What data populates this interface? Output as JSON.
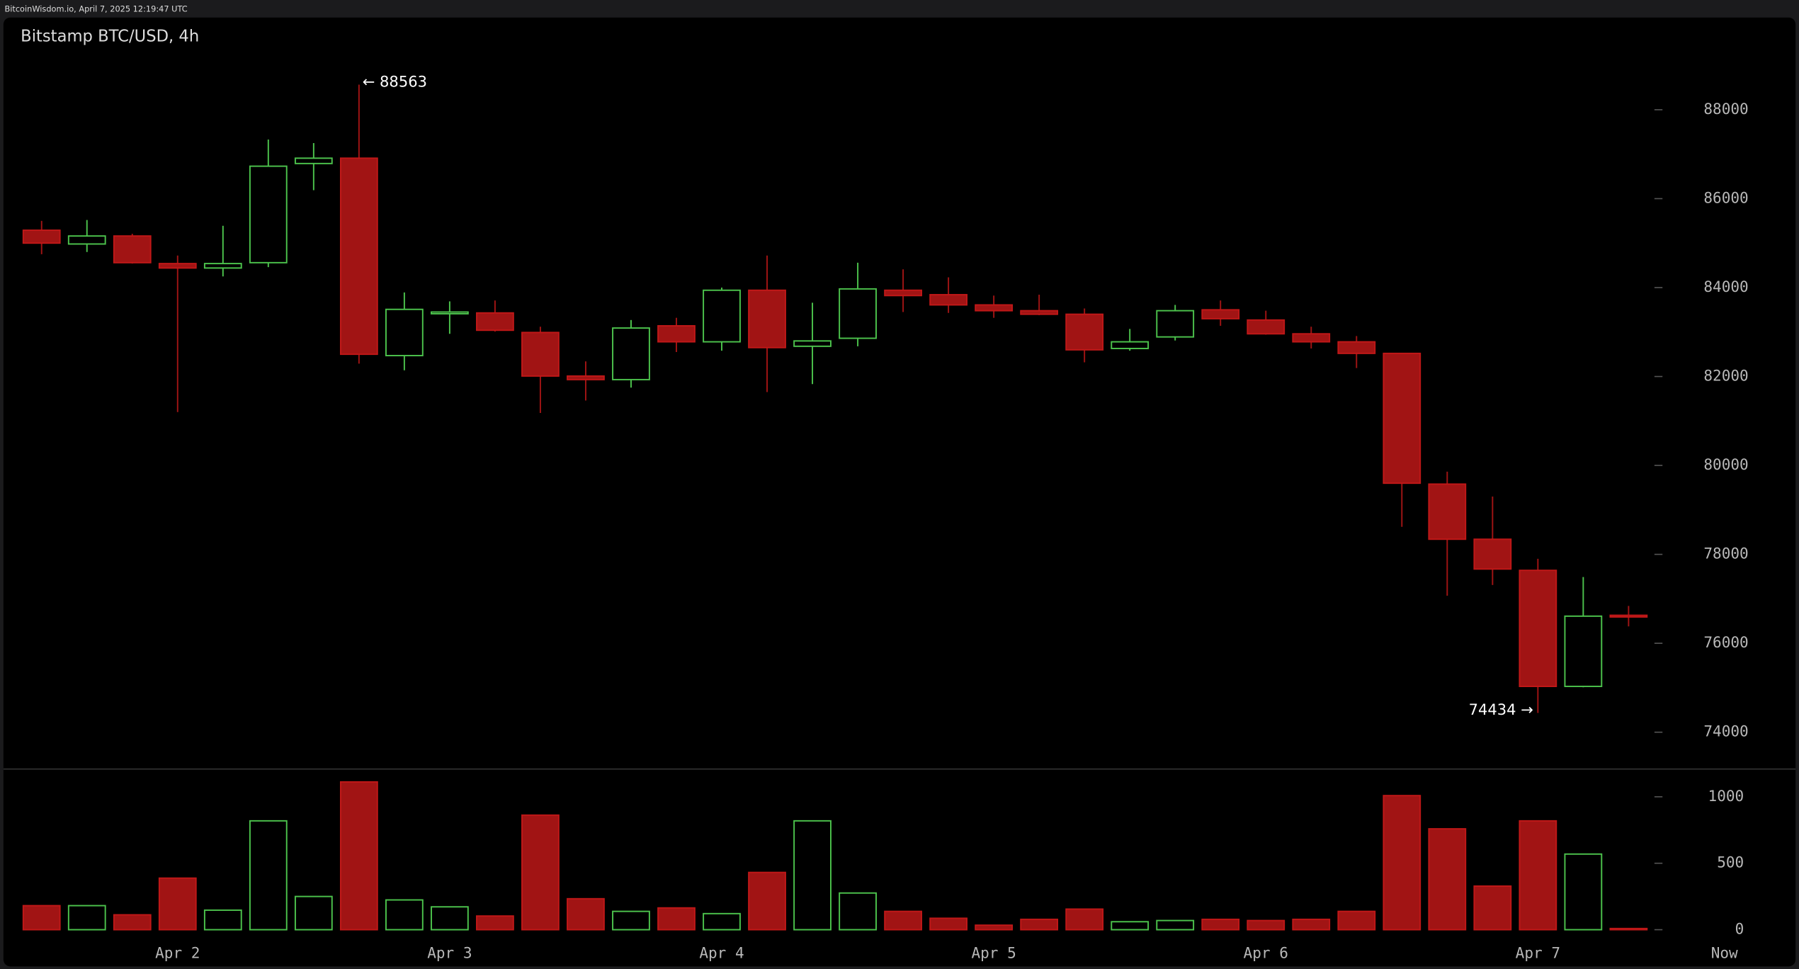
{
  "header_text": "BitcoinWisdom.io, April 7, 2025 12:19:47 UTC",
  "chart_data": {
    "type": "candlestick",
    "title": "Bitstamp BTC/USD, 4h",
    "categories": [
      null,
      null,
      null,
      "Apr 2",
      null,
      null,
      null,
      null,
      null,
      "Apr 3",
      null,
      null,
      null,
      null,
      null,
      "Apr 4",
      null,
      null,
      null,
      null,
      null,
      "Apr 5",
      null,
      null,
      null,
      null,
      null,
      "Apr 6",
      null,
      null,
      null,
      null,
      null,
      "Apr 7",
      null,
      null
    ],
    "x_end_label": "Now",
    "open": [
      85290,
      84980,
      85160,
      84540,
      84440,
      84560,
      86790,
      86910,
      82470,
      83430,
      83430,
      82990,
      82010,
      81930,
      83140,
      82780,
      83940,
      82680,
      82860,
      83940,
      83840,
      83610,
      83480,
      83400,
      82630,
      82890,
      83500,
      83270,
      82960,
      82780,
      82520,
      79580,
      78340,
      77640,
      75030,
      76630
    ],
    "high": [
      85500,
      85520,
      85210,
      84720,
      85390,
      87330,
      87250,
      88563,
      83890,
      83690,
      83710,
      83120,
      82340,
      83270,
      83320,
      84000,
      84720,
      83660,
      84560,
      84410,
      84230,
      83820,
      83840,
      83530,
      83070,
      83610,
      83710,
      83480,
      83120,
      82910,
      82520,
      79860,
      79300,
      77900,
      77490,
      76840
    ],
    "low": [
      84750,
      84800,
      84540,
      81200,
      84250,
      84460,
      86190,
      82290,
      82140,
      82960,
      83010,
      81180,
      81460,
      81750,
      82550,
      82580,
      81650,
      81830,
      82680,
      83450,
      83430,
      83320,
      83380,
      82320,
      82580,
      82810,
      83140,
      82940,
      82630,
      82190,
      78620,
      77070,
      77310,
      74434,
      75010,
      76380
    ],
    "close": [
      85000,
      85160,
      84560,
      84440,
      84540,
      86730,
      86910,
      82500,
      83510,
      83450,
      83040,
      82010,
      81930,
      83090,
      82780,
      83940,
      82650,
      82800,
      83970,
      83820,
      83610,
      83480,
      83400,
      82600,
      82780,
      83480,
      83300,
      82960,
      82780,
      82520,
      79600,
      78340,
      77670,
      75030,
      76610,
      76600
    ],
    "volume": [
      181,
      181,
      112,
      388,
      147,
      819,
      250,
      1112,
      224,
      172,
      103,
      862,
      233,
      138,
      164,
      121,
      431,
      819,
      276,
      138,
      86,
      34,
      78,
      155,
      60,
      69,
      78,
      69,
      78,
      138,
      1009,
      759,
      328,
      819,
      569,
      9
    ],
    "ylim": [
      73300,
      89300
    ],
    "yticks": [
      74000,
      76000,
      78000,
      80000,
      82000,
      84000,
      86000,
      88000
    ],
    "volume_ylim": [
      0,
      1200
    ],
    "volume_yticks": [
      0,
      500,
      1000
    ],
    "up_color": "#4cc24c",
    "down_color": "#a11414",
    "annotations": [
      {
        "label": "← 88563",
        "value": 88563
      },
      {
        "label": "74434 →",
        "value": 74434
      }
    ]
  }
}
